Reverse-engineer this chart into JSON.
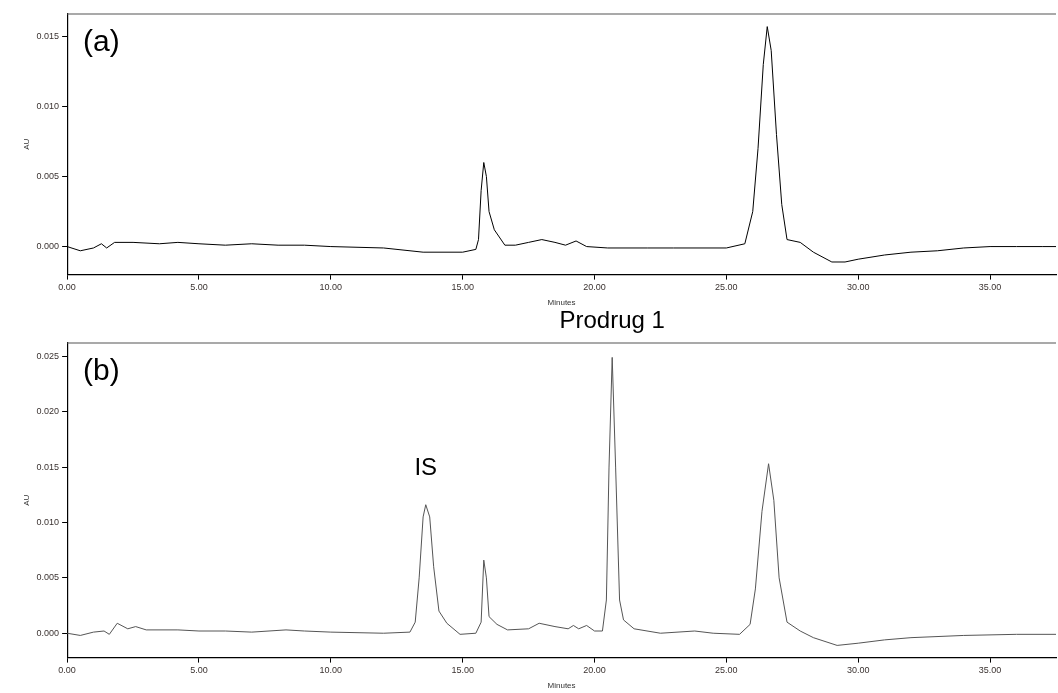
{
  "chart_data": [
    {
      "type": "line",
      "xlabel": "Minutes",
      "ylabel": "AU",
      "annotations": [
        "(a)"
      ],
      "color": "#000000",
      "marker": "none",
      "line_style": "solid",
      "xlim": [
        0,
        37.5
      ],
      "ylim": [
        -0.002,
        0.0166
      ],
      "xticks": [
        {
          "value": 0,
          "label": "0.00"
        },
        {
          "value": 5,
          "label": "5.00"
        },
        {
          "value": 10,
          "label": "10.00"
        },
        {
          "value": 15,
          "label": "15.00"
        },
        {
          "value": 20,
          "label": "20.00"
        },
        {
          "value": 25,
          "label": "25.00"
        },
        {
          "value": 30,
          "label": "30.00"
        },
        {
          "value": 35,
          "label": "35.00"
        }
      ],
      "yticks": [
        {
          "value": 0,
          "label": "0.000"
        },
        {
          "value": 0.005,
          "label": "0.005"
        },
        {
          "value": 0.01,
          "label": "0.010"
        },
        {
          "value": 0.015,
          "label": "0.015"
        }
      ],
      "x": [
        0,
        0.5,
        1.0,
        1.3,
        1.5,
        1.8,
        2.5,
        3.5,
        4.2,
        5,
        6,
        7,
        8,
        9,
        10,
        12,
        13.5,
        15.0,
        15.5,
        15.6,
        15.7,
        15.8,
        15.9,
        16.0,
        16.2,
        16.6,
        17.0,
        17.5,
        18.0,
        18.5,
        18.9,
        19.3,
        19.7,
        20.5,
        22,
        23,
        25,
        25.7,
        26.0,
        26.2,
        26.4,
        26.55,
        26.7,
        26.9,
        27.1,
        27.3,
        27.8,
        28.3,
        29.0,
        29.5,
        30,
        31,
        32,
        33,
        34,
        35,
        36,
        37,
        37.5
      ],
      "values": [
        0,
        -0.0003,
        -0.0001,
        0.0002,
        -0.0001,
        0.0003,
        0.0003,
        0.0002,
        0.0003,
        0.0002,
        0.0001,
        0.0002,
        0.0001,
        0.0001,
        0.0,
        -0.0001,
        -0.0004,
        -0.0004,
        -0.0002,
        0.0005,
        0.004,
        0.006,
        0.005,
        0.0025,
        0.0012,
        0.0001,
        0.0001,
        0.0003,
        0.0005,
        0.0003,
        0.0001,
        0.0004,
        0.0,
        -0.0001,
        -0.0001,
        -0.0001,
        -0.0001,
        0.0002,
        0.0025,
        0.007,
        0.013,
        0.0157,
        0.014,
        0.008,
        0.003,
        0.0005,
        0.0003,
        -0.0004,
        -0.0011,
        -0.0011,
        -0.0009,
        -0.0006,
        -0.0004,
        -0.0003,
        -0.0001,
        0.0,
        0.0,
        0.0,
        0.0
      ]
    },
    {
      "type": "line",
      "xlabel": "Minutes",
      "ylabel": "AU",
      "annotations": [
        "(b)",
        {
          "text": "IS",
          "x": 13.6,
          "y": 0.0116
        },
        {
          "text": "Prodrug 1",
          "x": 20.67,
          "y": 0.0249
        }
      ],
      "color": "#555555",
      "marker": "none",
      "line_style": "solid",
      "xlim": [
        0,
        37.5
      ],
      "ylim": [
        -0.0022,
        0.0262
      ],
      "xticks": [
        {
          "value": 0,
          "label": "0.00"
        },
        {
          "value": 5,
          "label": "5.00"
        },
        {
          "value": 10,
          "label": "10.00"
        },
        {
          "value": 15,
          "label": "15.00"
        },
        {
          "value": 20,
          "label": "20.00"
        },
        {
          "value": 25,
          "label": "25.00"
        },
        {
          "value": 30,
          "label": "30.00"
        },
        {
          "value": 35,
          "label": "35.00"
        }
      ],
      "yticks": [
        {
          "value": 0,
          "label": "0.000"
        },
        {
          "value": 0.005,
          "label": "0.005"
        },
        {
          "value": 0.01,
          "label": "0.010"
        },
        {
          "value": 0.015,
          "label": "0.015"
        },
        {
          "value": 0.02,
          "label": "0.020"
        },
        {
          "value": 0.025,
          "label": "0.025"
        }
      ],
      "x": [
        0,
        0.5,
        1.0,
        1.4,
        1.6,
        1.9,
        2.3,
        2.6,
        3.0,
        4.2,
        5,
        6,
        7,
        8.3,
        9,
        10,
        12,
        13.0,
        13.2,
        13.35,
        13.5,
        13.6,
        13.75,
        13.9,
        14.1,
        14.4,
        14.9,
        15.5,
        15.7,
        15.8,
        15.9,
        16.0,
        16.3,
        16.7,
        17.5,
        17.9,
        18.5,
        19.0,
        19.2,
        19.4,
        19.7,
        20.0,
        20.3,
        20.45,
        20.55,
        20.67,
        20.8,
        20.95,
        21.1,
        21.5,
        22.5,
        23.8,
        24.5,
        25.5,
        25.9,
        26.1,
        26.35,
        26.6,
        26.8,
        27.0,
        27.3,
        27.8,
        28.3,
        29.2,
        30,
        31,
        32,
        34,
        36,
        37.5
      ],
      "values": [
        0,
        -0.0002,
        0.0001,
        0.0002,
        -0.0001,
        0.0009,
        0.0004,
        0.0006,
        0.0003,
        0.0003,
        0.0002,
        0.0002,
        0.0001,
        0.0003,
        0.0002,
        0.0001,
        0.0,
        0.0001,
        0.001,
        0.005,
        0.0105,
        0.0116,
        0.0105,
        0.006,
        0.002,
        0.0009,
        -0.0001,
        0.0,
        0.001,
        0.0066,
        0.005,
        0.0015,
        0.0008,
        0.0003,
        0.0004,
        0.0009,
        0.0006,
        0.0004,
        0.0007,
        0.0004,
        0.0007,
        0.0002,
        0.0002,
        0.003,
        0.015,
        0.0249,
        0.015,
        0.003,
        0.0012,
        0.0004,
        0.0,
        0.0002,
        0.0,
        -0.0001,
        0.0008,
        0.004,
        0.011,
        0.0153,
        0.012,
        0.005,
        0.001,
        0.0002,
        -0.0004,
        -0.0011,
        -0.0009,
        -0.0006,
        -0.0004,
        -0.0002,
        -0.0001,
        -0.0001
      ]
    }
  ]
}
